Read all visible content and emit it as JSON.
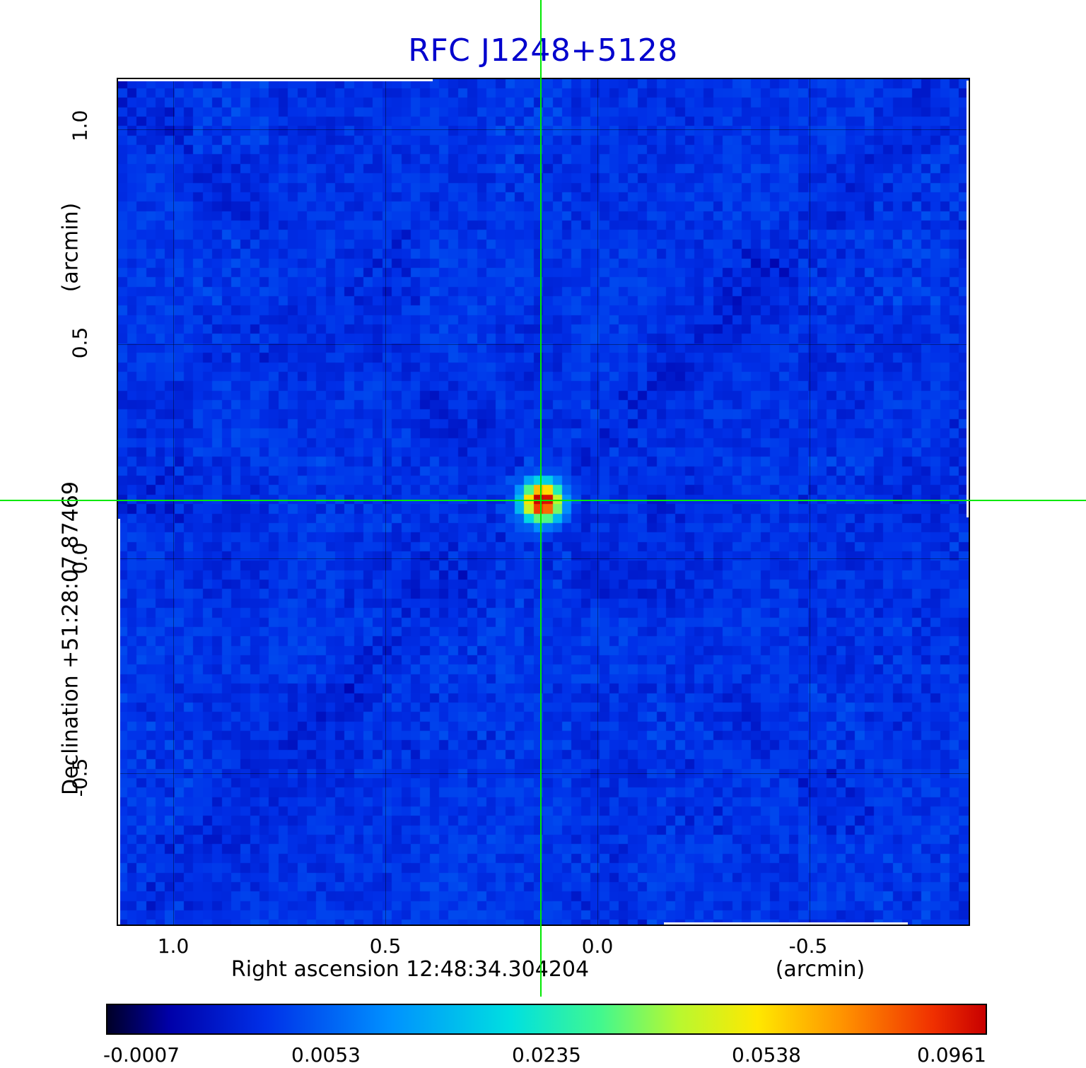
{
  "title": "RFC J1248+5128",
  "colors": {
    "title": "#0000cd",
    "crosshair": "#00e800",
    "background_sky": "#0038d8"
  },
  "axes": {
    "y_unit_label": "(arcmin)",
    "y_axis_label": "Declination  +51:28:07.87469",
    "x_axis_label": "Right ascension  12:48:34.304204",
    "x_unit_label": "(arcmin)",
    "y_ticks": [
      "1.0",
      "0.5",
      "0.0",
      "-0.5"
    ],
    "x_ticks": [
      "1.0",
      "0.5",
      "0.0",
      "-0.5"
    ]
  },
  "colorbar": {
    "tick_labels": [
      "-0.0007",
      "0.0053",
      "0.0235",
      "0.0538",
      "0.0961"
    ]
  },
  "chart_data": {
    "type": "heatmap",
    "title": "RFC J1248+5128",
    "xlabel": "Right ascension  12:48:34.304204  (arcmin)",
    "ylabel": "Declination  +51:28:07.87469  (arcmin)",
    "x_ticks_arcmin": [
      1.0,
      0.5,
      0.0,
      -0.5
    ],
    "y_ticks_arcmin": [
      1.0,
      0.5,
      0.0,
      -0.5
    ],
    "x_range_arcmin": [
      1.13,
      -0.88
    ],
    "y_range_arcmin": [
      -0.86,
      1.12
    ],
    "grid": true,
    "legend": "colorbar-bottom",
    "colormap": "rainbow",
    "scale": "sqrt",
    "vmin": -0.0007,
    "vmax": 0.0961,
    "colorbar_ticks": [
      -0.0007,
      0.0053,
      0.0235,
      0.0538,
      0.0961
    ],
    "background_level": 0.0028,
    "source": {
      "ra": "12:48:34.304204",
      "dec": "+51:28:07.87469",
      "x_offset_arcmin": 0.13,
      "y_offset_arcmin": 0.14,
      "peak_value": 0.0961
    },
    "crosshair_color": "#00e800",
    "colormap_stops": [
      {
        "t": 0.0,
        "c": "#000028"
      },
      {
        "t": 0.08,
        "c": "#0000a8"
      },
      {
        "t": 0.18,
        "c": "#0030e8"
      },
      {
        "t": 0.32,
        "c": "#0090ff"
      },
      {
        "t": 0.46,
        "c": "#00e0e0"
      },
      {
        "t": 0.56,
        "c": "#40f890"
      },
      {
        "t": 0.65,
        "c": "#b8f830"
      },
      {
        "t": 0.74,
        "c": "#ffe800"
      },
      {
        "t": 0.84,
        "c": "#ff9000"
      },
      {
        "t": 0.94,
        "c": "#f03000"
      },
      {
        "t": 1.0,
        "c": "#c80000"
      }
    ]
  }
}
